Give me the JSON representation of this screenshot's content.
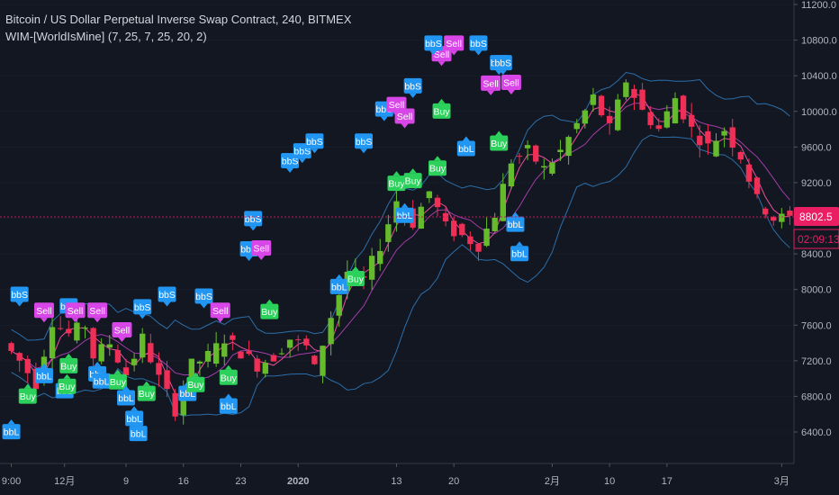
{
  "header": {
    "symbol_title": "Bitcoin / US Dollar Perpetual Inverse Swap Contract, 240, BITMEX",
    "indicator_title": "WIM-[WorldIsMine] (7, 25, 7, 25, 20, 2)"
  },
  "colors": {
    "background": "#131722",
    "axis_text": "#b2b5be",
    "grid_line": "#2a2e39",
    "bull_candle": "#66bb2c",
    "bear_candle": "#ef2f55",
    "ma_fast": "#e84f9c",
    "ma_slow": "#a23da8",
    "bollinger": "#2c6ea8",
    "buy_label": "#2bd15a",
    "sell_label": "#d946e8",
    "bb_label": "#2196f3",
    "price_line": "#c2185b",
    "price_tag": "#e91e63"
  },
  "price_axis": {
    "ticks": [
      "11200.0",
      "10800.0",
      "10400.0",
      "10000.0",
      "9600.0",
      "9200.0",
      "8800.0",
      "8400.0",
      "8000.0",
      "7600.0",
      "7200.0",
      "6800.0",
      "6400.0"
    ],
    "current_price": "8802.5",
    "countdown": "02:09:13"
  },
  "time_axis": {
    "ticks": [
      "9:00",
      "12月",
      "9",
      "16",
      "23",
      "2020",
      "13",
      "20",
      "2月",
      "10",
      "17",
      "3月"
    ]
  },
  "chart_data": {
    "type": "candlestick",
    "title": "Bitcoin / US Dollar Perpetual Inverse Swap Contract, 240, BITMEX",
    "indicator": "WIM-[WorldIsMine] (7, 25, 7, 25, 20, 2)",
    "ylim": [
      6100,
      11300
    ],
    "ytick_values": [
      11200,
      10800,
      10400,
      10000,
      9600,
      9200,
      8800,
      8400,
      8000,
      7600,
      7200,
      6800,
      6400
    ],
    "x_tick_labels": [
      "9:00",
      "12月",
      "9",
      "16",
      "23",
      "2020",
      "13",
      "20",
      "2月",
      "10",
      "17",
      "3月"
    ],
    "x_tick_index": [
      0,
      6.5,
      14,
      21,
      28,
      35,
      47,
      54,
      66,
      73,
      80,
      94
    ],
    "bar_count": 96,
    "price_path": [
      [
        0,
        7400
      ],
      [
        2,
        7200
      ],
      [
        4,
        6950
      ],
      [
        6,
        7650
      ],
      [
        8,
        7500
      ],
      [
        10,
        7600
      ],
      [
        11,
        7250
      ],
      [
        13,
        7400
      ],
      [
        15,
        7050
      ],
      [
        17,
        7450
      ],
      [
        19,
        7000
      ],
      [
        21,
        6650
      ],
      [
        23,
        7150
      ],
      [
        25,
        7250
      ],
      [
        27,
        7450
      ],
      [
        29,
        7300
      ],
      [
        31,
        7150
      ],
      [
        33,
        7250
      ],
      [
        35,
        7450
      ],
      [
        37,
        7350
      ],
      [
        38,
        7100
      ],
      [
        40,
        7700
      ],
      [
        42,
        8200
      ],
      [
        44,
        8100
      ],
      [
        46,
        8500
      ],
      [
        48,
        9000
      ],
      [
        50,
        8750
      ],
      [
        52,
        9100
      ],
      [
        54,
        8700
      ],
      [
        56,
        8600
      ],
      [
        58,
        8500
      ],
      [
        60,
        8850
      ],
      [
        62,
        9450
      ],
      [
        64,
        9550
      ],
      [
        66,
        9350
      ],
      [
        68,
        9550
      ],
      [
        70,
        9850
      ],
      [
        72,
        10150
      ],
      [
        74,
        9800
      ],
      [
        76,
        10350
      ],
      [
        78,
        10000
      ],
      [
        80,
        9800
      ],
      [
        82,
        10150
      ],
      [
        84,
        9800
      ],
      [
        86,
        9600
      ],
      [
        88,
        9800
      ],
      [
        90,
        9500
      ],
      [
        92,
        9000
      ],
      [
        94,
        8800
      ],
      [
        95,
        8800
      ]
    ],
    "last_price": 8802.5,
    "signals": [
      {
        "label": "bbS",
        "side": "above",
        "i": 1,
        "price": 7800
      },
      {
        "label": "bbL",
        "side": "below",
        "i": 0,
        "price": 6550
      },
      {
        "label": "Buy",
        "side": "below",
        "i": 2,
        "price": 6950
      },
      {
        "label": "Sell",
        "side": "above",
        "i": 4,
        "price": 7620
      },
      {
        "label": "bbL",
        "side": "below",
        "i": 4,
        "price": 7180
      },
      {
        "label": "bbS",
        "side": "above",
        "i": 7,
        "price": 7670
      },
      {
        "label": "Sell",
        "side": "above",
        "i": 7.8,
        "price": 7620
      },
      {
        "label": "Buy",
        "side": "below",
        "i": 7,
        "price": 7290
      },
      {
        "label": "bbL",
        "side": "below",
        "i": 6.5,
        "price": 7010
      },
      {
        "label": "Buy",
        "side": "below",
        "i": 6.8,
        "price": 7060
      },
      {
        "label": "Sell",
        "side": "above",
        "i": 10.5,
        "price": 7620
      },
      {
        "label": "bbL",
        "side": "below",
        "i": 10.5,
        "price": 7200
      },
      {
        "label": "bbL",
        "side": "below",
        "i": 11,
        "price": 7120
      },
      {
        "label": "Buy",
        "side": "below",
        "i": 13,
        "price": 7110
      },
      {
        "label": "bbS",
        "side": "above",
        "i": 16,
        "price": 7660
      },
      {
        "label": "Sell",
        "side": "above",
        "i": 13.5,
        "price": 7400
      },
      {
        "label": "bbL",
        "side": "below",
        "i": 14,
        "price": 6930
      },
      {
        "label": "bbL",
        "side": "below",
        "i": 15,
        "price": 6700
      },
      {
        "label": "bbL",
        "side": "below",
        "i": 15.5,
        "price": 6530
      },
      {
        "label": "Buy",
        "side": "below",
        "i": 16.5,
        "price": 6980
      },
      {
        "label": "bbS",
        "side": "above",
        "i": 19,
        "price": 7800
      },
      {
        "label": "bbL",
        "side": "below",
        "i": 21.5,
        "price": 6980
      },
      {
        "label": "Buy",
        "side": "below",
        "i": 22.5,
        "price": 7080
      },
      {
        "label": "bbS",
        "side": "above",
        "i": 23.5,
        "price": 7780
      },
      {
        "label": "Sell",
        "side": "above",
        "i": 25.5,
        "price": 7620
      },
      {
        "label": "Buy",
        "side": "below",
        "i": 26.5,
        "price": 7160
      },
      {
        "label": "bbL",
        "side": "below",
        "i": 26.5,
        "price": 6840
      },
      {
        "label": "bbS",
        "side": "above",
        "i": 29,
        "price": 8310
      },
      {
        "label": "Sell",
        "side": "above",
        "i": 30.5,
        "price": 8320
      },
      {
        "label": "Buy",
        "side": "below",
        "i": 31.5,
        "price": 7900
      },
      {
        "label": "bbS",
        "side": "above",
        "i": 29.5,
        "price": 8650
      },
      {
        "label": "bbS",
        "side": "above",
        "i": 34,
        "price": 9300
      },
      {
        "label": "bbS",
        "side": "above",
        "i": 35.5,
        "price": 9410
      },
      {
        "label": "bbS",
        "side": "above",
        "i": 37,
        "price": 9520
      },
      {
        "label": "bbL",
        "side": "below",
        "i": 40,
        "price": 8180
      },
      {
        "label": "Buy",
        "side": "below",
        "i": 42,
        "price": 8270
      },
      {
        "label": "bbS",
        "side": "above",
        "i": 43,
        "price": 9520
      },
      {
        "label": "bbS",
        "side": "above",
        "i": 45.5,
        "price": 9880
      },
      {
        "label": "Sell",
        "side": "above",
        "i": 47,
        "price": 9930
      },
      {
        "label": "Sell",
        "side": "above",
        "i": 48,
        "price": 9800
      },
      {
        "label": "Buy",
        "side": "below",
        "i": 47,
        "price": 9340
      },
      {
        "label": "Buy",
        "side": "below",
        "i": 49,
        "price": 9370
      },
      {
        "label": "bbL",
        "side": "below",
        "i": 48,
        "price": 8980
      },
      {
        "label": "bbS",
        "side": "above",
        "i": 49,
        "price": 10140
      },
      {
        "label": "Sell",
        "side": "above",
        "i": 52.5,
        "price": 10500
      },
      {
        "label": "bbS",
        "side": "above",
        "i": 51.5,
        "price": 10620
      },
      {
        "label": "Sell",
        "side": "above",
        "i": 54,
        "price": 10620
      },
      {
        "label": "bbS",
        "side": "above",
        "i": 57,
        "price": 10620
      },
      {
        "label": "Buy",
        "side": "below",
        "i": 52.5,
        "price": 10150
      },
      {
        "label": "bbL",
        "side": "below",
        "i": 55.5,
        "price": 9730
      },
      {
        "label": "Sell",
        "side": "above",
        "i": 58.5,
        "price": 10170
      },
      {
        "label": "Buy",
        "side": "below",
        "i": 59.5,
        "price": 9790
      },
      {
        "label": "Buy",
        "side": "below",
        "i": 52,
        "price": 9510
      },
      {
        "label": "bbS",
        "side": "above",
        "i": 59.5,
        "price": 10400
      },
      {
        "label": "bbS",
        "side": "above",
        "i": 60,
        "price": 10400
      },
      {
        "label": "Sell",
        "side": "above",
        "i": 61,
        "price": 10180
      },
      {
        "label": "bbL",
        "side": "below",
        "i": 61.5,
        "price": 8880
      },
      {
        "label": "bbL",
        "side": "below",
        "i": 62,
        "price": 8550
      }
    ]
  }
}
